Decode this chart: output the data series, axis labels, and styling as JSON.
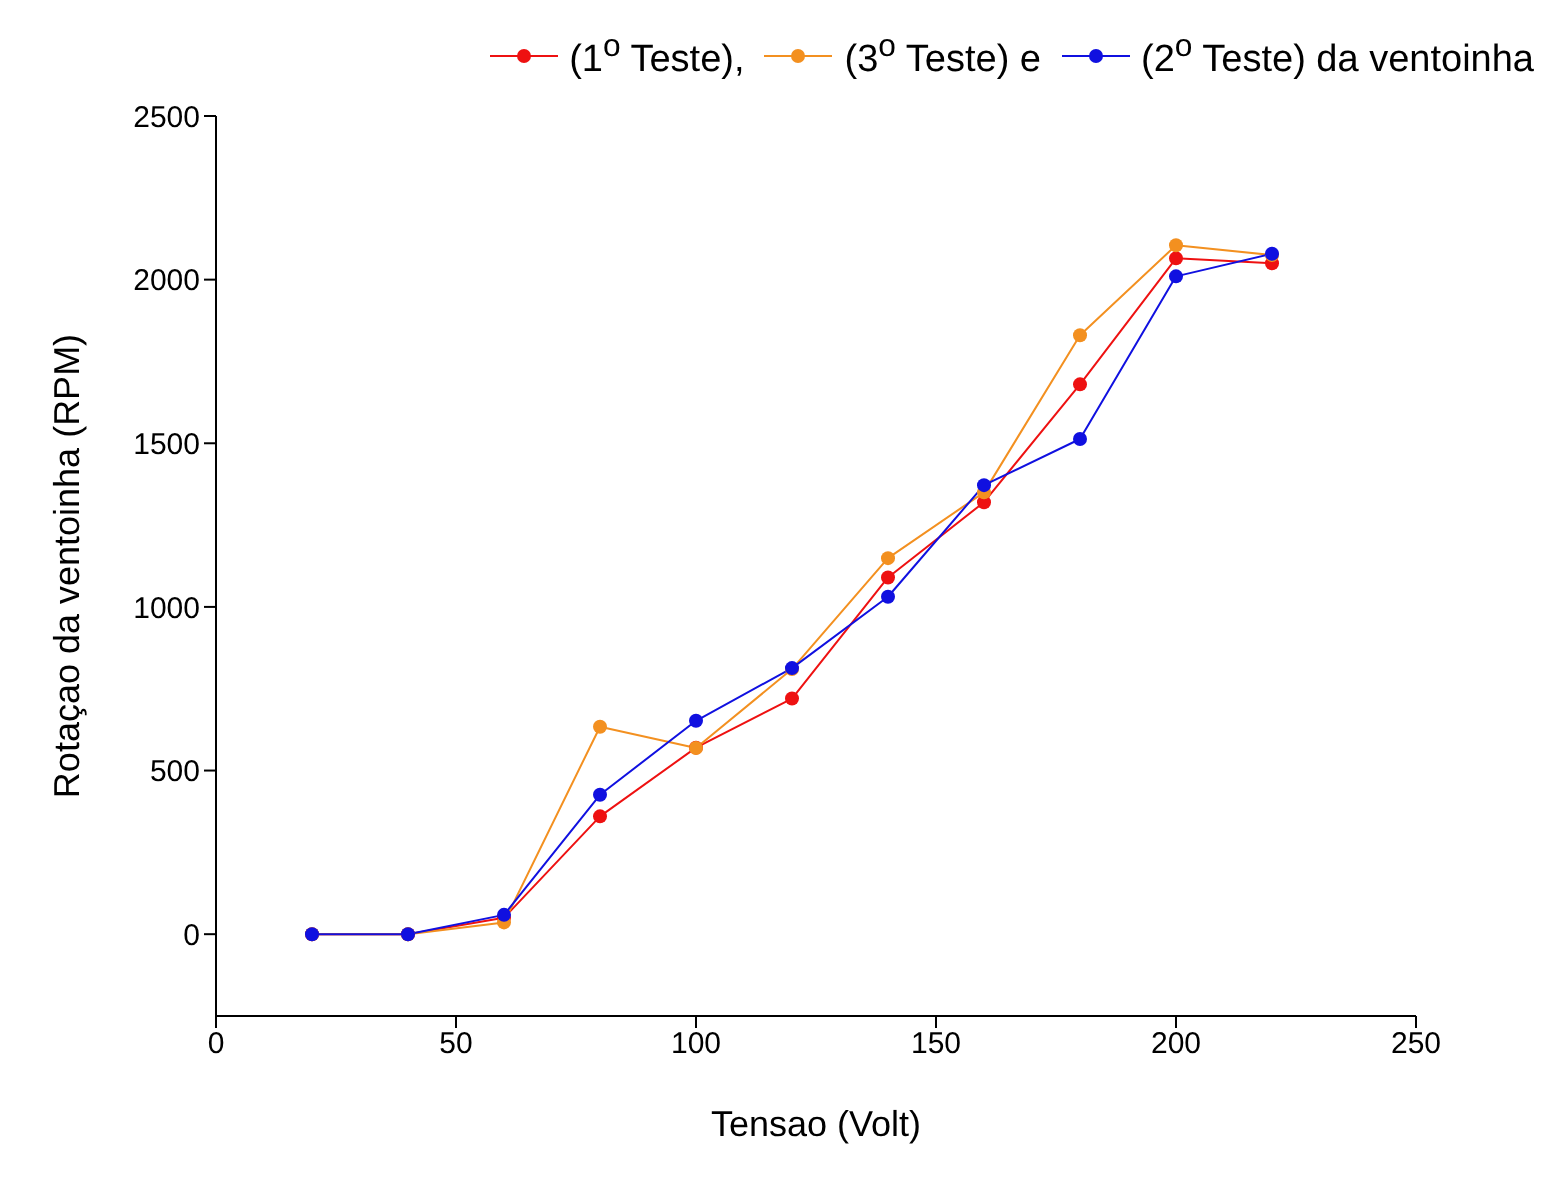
{
  "chart_data": {
    "type": "line",
    "xlabel": "Tensao (Volt)",
    "ylabel": "Rotaçao da ventoinha (RPM)",
    "x": [
      20,
      40,
      60,
      80,
      100,
      120,
      140,
      160,
      180,
      200,
      220
    ],
    "series": [
      {
        "name": "(1$^{o}$ Teste),",
        "color": "#ee1111",
        "values": [
          0,
          0,
          50,
          360,
          570,
          720,
          1090,
          1320,
          1680,
          2065,
          2050
        ]
      },
      {
        "name": "(3$^{o}$ Teste) e",
        "color": "#f39020",
        "values": [
          0,
          0,
          36,
          634,
          569,
          810,
          1149,
          1350,
          1830,
          2105,
          2075
        ]
      },
      {
        "name": "(2$^{o}$ Teste) da ventoinha",
        "color": "#1010e0",
        "values": [
          0,
          0,
          59,
          426,
          652,
          813,
          1031,
          1372,
          1513,
          2010,
          2079
        ]
      }
    ],
    "xlim": [
      0,
      250
    ],
    "xticks": [
      0,
      50,
      100,
      150,
      200,
      250
    ],
    "ylim": [
      -250,
      2500
    ],
    "yticks": [
      0,
      500,
      1000,
      1500,
      2000,
      2500
    ],
    "grid": false,
    "legend": "top",
    "marker": "circle",
    "line_style": "solid"
  }
}
